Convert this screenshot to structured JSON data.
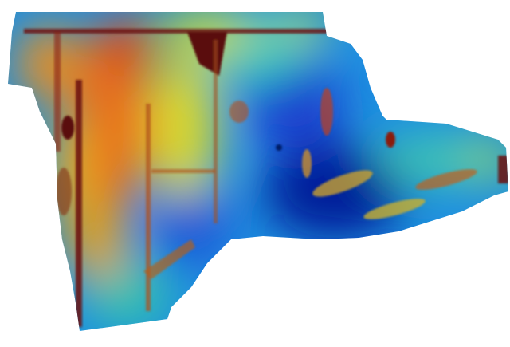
{
  "map": {
    "kind": "elevation-colored terrain surface",
    "colormap": [
      "#00008b",
      "#0033cc",
      "#1e90ff",
      "#20c0d0",
      "#60d090",
      "#c8d830",
      "#f0c020",
      "#f08020",
      "#d03010",
      "#6a0c0c"
    ],
    "colors": {
      "high": "#e8601a",
      "mid": "#d8d830",
      "low": "#1a40d0",
      "lowest": "#001a99",
      "features": "#6a0c0c",
      "background": "#ffffff"
    }
  }
}
